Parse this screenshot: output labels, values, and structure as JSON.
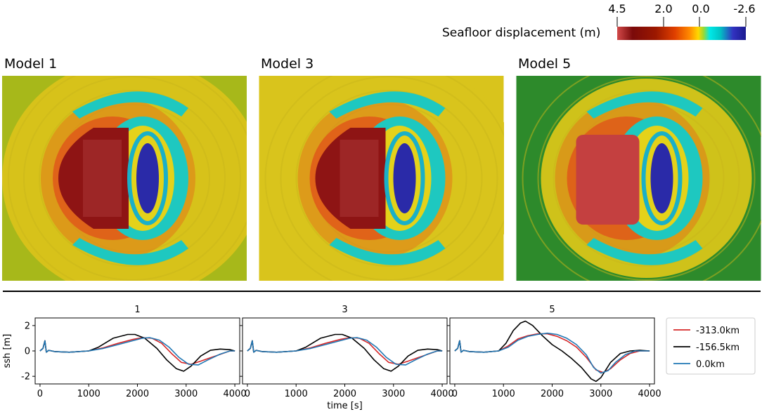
{
  "colorbar": {
    "label": "Seafloor displacement (m)",
    "ticks": [
      "4.5",
      "2.0",
      "0.0",
      "-2.6"
    ],
    "colors": [
      "#420000",
      "#8b0000",
      "#cc2200",
      "#ff6600",
      "#ffd000",
      "#c8d800",
      "#00e0e0",
      "#00c8c8",
      "#2020b0",
      "#000080"
    ]
  },
  "models": [
    {
      "title": "Model 1",
      "background": "#d7c21a",
      "outer": "#a7b81a"
    },
    {
      "title": "Model 3",
      "background": "#d9c41c",
      "outer": "#d9c41c"
    },
    {
      "title": "Model 5",
      "background": "#cfc21a",
      "outer": "#2d8a2b"
    }
  ],
  "chart_data": {
    "type": "line",
    "subplot_titles": [
      "1",
      "3",
      "5"
    ],
    "ylabel": "ssh [m]",
    "xlabel": "time [s]",
    "xlim": [
      -100,
      4100
    ],
    "ylim": [
      -2.6,
      2.6
    ],
    "xticks": [
      "0",
      "1000",
      "2000",
      "3000",
      "4000"
    ],
    "yticks": [
      "2",
      "0",
      "-2"
    ],
    "legend": {
      "placement": "right",
      "entries": [
        "-313.0km",
        "-156.5km",
        "0.0km"
      ]
    },
    "series_colors": [
      "#d62728",
      "#000000",
      "#1f77b4"
    ],
    "panels": [
      {
        "title": "1",
        "series": [
          {
            "name": "-313.0km",
            "x": [
              0,
              60,
              100,
              130,
              180,
              300,
              600,
              1000,
              1300,
              1600,
              1900,
              2100,
              2300,
              2500,
              2700,
              2900,
              3100,
              3300,
              3600,
              3900,
              4000
            ],
            "y": [
              0,
              0.2,
              0.8,
              -0.1,
              0.05,
              -0.05,
              -0.1,
              0,
              0.25,
              0.6,
              0.9,
              1.05,
              1.0,
              0.6,
              -0.2,
              -0.9,
              -1.05,
              -0.8,
              -0.4,
              0,
              0
            ]
          },
          {
            "name": "-156.5km",
            "x": [
              0,
              60,
              100,
              130,
              180,
              300,
              600,
              1000,
              1200,
              1500,
              1800,
              1950,
              2150,
              2400,
              2600,
              2800,
              2950,
              3100,
              3300,
              3500,
              3700,
              3900,
              4000
            ],
            "y": [
              0,
              0.2,
              0.8,
              -0.1,
              0.05,
              -0.05,
              -0.1,
              0,
              0.3,
              1.0,
              1.3,
              1.3,
              1.0,
              0.2,
              -0.7,
              -1.4,
              -1.6,
              -1.2,
              -0.4,
              0.05,
              0.15,
              0.1,
              0
            ]
          },
          {
            "name": "0.0km",
            "x": [
              0,
              60,
              100,
              130,
              180,
              300,
              600,
              1000,
              1300,
              1600,
              1900,
              2100,
              2250,
              2450,
              2650,
              2850,
              3050,
              3250,
              3450,
              3700,
              3900,
              4000
            ],
            "y": [
              0,
              0.2,
              0.8,
              -0.1,
              0.05,
              -0.05,
              -0.1,
              0,
              0.2,
              0.5,
              0.8,
              1.0,
              1.05,
              0.85,
              0.3,
              -0.5,
              -1.05,
              -1.1,
              -0.7,
              -0.25,
              0,
              0
            ]
          }
        ]
      },
      {
        "title": "3",
        "series": [
          {
            "name": "-313.0km",
            "x": [
              0,
              60,
              100,
              130,
              180,
              300,
              600,
              1000,
              1300,
              1600,
              1900,
              2100,
              2300,
              2500,
              2700,
              2900,
              3100,
              3300,
              3600,
              3900,
              4000
            ],
            "y": [
              0,
              0.2,
              0.8,
              -0.1,
              0.05,
              -0.05,
              -0.1,
              0,
              0.25,
              0.6,
              0.9,
              1.05,
              1.0,
              0.6,
              -0.2,
              -0.9,
              -1.05,
              -0.8,
              -0.4,
              0,
              0
            ]
          },
          {
            "name": "-156.5km",
            "x": [
              0,
              60,
              100,
              130,
              180,
              300,
              600,
              1000,
              1200,
              1500,
              1800,
              1950,
              2150,
              2400,
              2600,
              2800,
              2950,
              3100,
              3300,
              3500,
              3700,
              3900,
              4000
            ],
            "y": [
              0,
              0.2,
              0.8,
              -0.1,
              0.05,
              -0.05,
              -0.1,
              0,
              0.3,
              1.0,
              1.3,
              1.3,
              1.0,
              0.2,
              -0.7,
              -1.4,
              -1.6,
              -1.2,
              -0.4,
              0.05,
              0.15,
              0.1,
              0
            ]
          },
          {
            "name": "0.0km",
            "x": [
              0,
              60,
              100,
              130,
              180,
              300,
              600,
              1000,
              1300,
              1600,
              1900,
              2100,
              2250,
              2450,
              2650,
              2850,
              3050,
              3250,
              3450,
              3700,
              3900,
              4000
            ],
            "y": [
              0,
              0.2,
              0.8,
              -0.1,
              0.05,
              -0.05,
              -0.1,
              0,
              0.2,
              0.5,
              0.8,
              1.0,
              1.05,
              0.85,
              0.3,
              -0.5,
              -1.05,
              -1.1,
              -0.7,
              -0.25,
              0,
              0
            ]
          }
        ]
      },
      {
        "title": "5",
        "series": [
          {
            "name": "-313.0km",
            "x": [
              0,
              60,
              100,
              130,
              180,
              300,
              600,
              900,
              1100,
              1300,
              1500,
              1700,
              1900,
              2100,
              2300,
              2500,
              2700,
              2900,
              3050,
              3200,
              3400,
              3600,
              3800,
              4000
            ],
            "y": [
              0,
              0.2,
              0.8,
              -0.1,
              0.05,
              -0.05,
              -0.1,
              0,
              0.4,
              0.95,
              1.2,
              1.35,
              1.35,
              1.15,
              0.8,
              0.3,
              -0.5,
              -1.5,
              -1.7,
              -1.4,
              -0.7,
              -0.2,
              0,
              0
            ]
          },
          {
            "name": "-156.5km",
            "x": [
              0,
              60,
              100,
              130,
              180,
              300,
              600,
              900,
              1050,
              1200,
              1350,
              1450,
              1600,
              1800,
              2000,
              2200,
              2400,
              2600,
              2800,
              2900,
              3000,
              3200,
              3400,
              3600,
              3800,
              4000
            ],
            "y": [
              0,
              0.2,
              0.8,
              -0.1,
              0.05,
              -0.05,
              -0.1,
              0,
              0.6,
              1.6,
              2.2,
              2.35,
              2.0,
              1.2,
              0.5,
              0.0,
              -0.6,
              -1.3,
              -2.2,
              -2.4,
              -2.1,
              -0.9,
              -0.2,
              0,
              0.05,
              0
            ]
          },
          {
            "name": "0.0km",
            "x": [
              0,
              60,
              100,
              130,
              180,
              300,
              600,
              900,
              1100,
              1300,
              1500,
              1700,
              1900,
              2100,
              2300,
              2500,
              2700,
              2850,
              3000,
              3150,
              3300,
              3500,
              3700,
              3900,
              4000
            ],
            "y": [
              0,
              0.2,
              0.8,
              -0.1,
              0.05,
              -0.05,
              -0.1,
              0,
              0.3,
              0.85,
              1.15,
              1.3,
              1.4,
              1.3,
              1.0,
              0.5,
              -0.3,
              -1.3,
              -1.75,
              -1.55,
              -0.9,
              -0.3,
              0,
              0,
              0
            ]
          }
        ]
      }
    ]
  }
}
